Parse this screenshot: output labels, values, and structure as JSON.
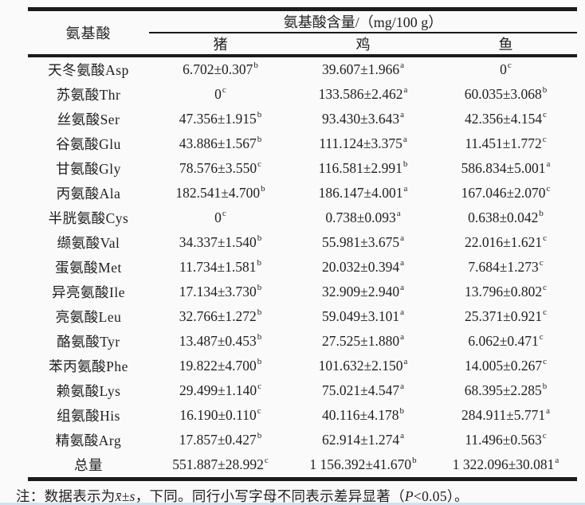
{
  "table": {
    "amino_header": "氨基酸",
    "content_header": "氨基酸含量/（mg/100 g）",
    "species": [
      "猪",
      "鸡",
      "鱼"
    ],
    "rows": [
      {
        "name": "天冬氨酸Asp",
        "cells": [
          {
            "v": "6.702±0.307",
            "s": "b"
          },
          {
            "v": "39.607±1.966",
            "s": "a"
          },
          {
            "v": "0",
            "s": "c"
          }
        ]
      },
      {
        "name": "苏氨酸Thr",
        "cells": [
          {
            "v": "0",
            "s": "c"
          },
          {
            "v": "133.586±2.462",
            "s": "a"
          },
          {
            "v": "60.035±3.068",
            "s": "b"
          }
        ]
      },
      {
        "name": "丝氨酸Ser",
        "cells": [
          {
            "v": "47.356±1.915",
            "s": "b"
          },
          {
            "v": "93.430±3.643",
            "s": "a"
          },
          {
            "v": "42.356±4.154",
            "s": "c"
          }
        ]
      },
      {
        "name": "谷氨酸Glu",
        "cells": [
          {
            "v": "43.886±1.567",
            "s": "b"
          },
          {
            "v": "111.124±3.375",
            "s": "a"
          },
          {
            "v": "11.451±1.772",
            "s": "c"
          }
        ]
      },
      {
        "name": "甘氨酸Gly",
        "cells": [
          {
            "v": "78.576±3.550",
            "s": "c"
          },
          {
            "v": "116.581±2.991",
            "s": "b"
          },
          {
            "v": "586.834±5.001",
            "s": "a"
          }
        ]
      },
      {
        "name": "丙氨酸Ala",
        "cells": [
          {
            "v": "182.541±4.700",
            "s": "b"
          },
          {
            "v": "186.147±4.001",
            "s": "a"
          },
          {
            "v": "167.046±2.070",
            "s": "c"
          }
        ]
      },
      {
        "name": "半胱氨酸Cys",
        "cells": [
          {
            "v": "0",
            "s": "c"
          },
          {
            "v": "0.738±0.093",
            "s": "a"
          },
          {
            "v": "0.638±0.042",
            "s": "b"
          }
        ]
      },
      {
        "name": "缬氨酸Val",
        "cells": [
          {
            "v": "34.337±1.540",
            "s": "b"
          },
          {
            "v": "55.981±3.675",
            "s": "a"
          },
          {
            "v": "22.016±1.621",
            "s": "c"
          }
        ]
      },
      {
        "name": "蛋氨酸Met",
        "cells": [
          {
            "v": "11.734±1.581",
            "s": "b"
          },
          {
            "v": "20.032±0.394",
            "s": "a"
          },
          {
            "v": "7.684±1.273",
            "s": "c"
          }
        ]
      },
      {
        "name": "异亮氨酸Ile",
        "cells": [
          {
            "v": "17.134±3.730",
            "s": "b"
          },
          {
            "v": "32.909±2.940",
            "s": "a"
          },
          {
            "v": "13.796±0.802",
            "s": "c"
          }
        ]
      },
      {
        "name": "亮氨酸Leu",
        "cells": [
          {
            "v": "32.766±1.272",
            "s": "b"
          },
          {
            "v": "59.049±3.101",
            "s": "a"
          },
          {
            "v": "25.371±0.921",
            "s": "c"
          }
        ]
      },
      {
        "name": "酪氨酸Tyr",
        "cells": [
          {
            "v": "13.487±0.453",
            "s": "b"
          },
          {
            "v": "27.525±1.880",
            "s": "a"
          },
          {
            "v": "6.062±0.471",
            "s": "c"
          }
        ]
      },
      {
        "name": "苯丙氨酸Phe",
        "cells": [
          {
            "v": "19.822±4.700",
            "s": "b"
          },
          {
            "v": "101.632±2.150",
            "s": "a"
          },
          {
            "v": "14.005±0.267",
            "s": "c"
          }
        ]
      },
      {
        "name": "赖氨酸Lys",
        "cells": [
          {
            "v": "29.499±1.140",
            "s": "c"
          },
          {
            "v": "75.021±4.547",
            "s": "a"
          },
          {
            "v": "68.395±2.285",
            "s": "b"
          }
        ]
      },
      {
        "name": "组氨酸His",
        "cells": [
          {
            "v": "16.190±0.110",
            "s": "c"
          },
          {
            "v": "40.116±4.178",
            "s": "b"
          },
          {
            "v": "284.911±5.771",
            "s": "a"
          }
        ]
      },
      {
        "name": "精氨酸Arg",
        "cells": [
          {
            "v": "17.857±0.427",
            "s": "b"
          },
          {
            "v": "62.914±1.274",
            "s": "a"
          },
          {
            "v": "11.496±0.563",
            "s": "c"
          }
        ]
      },
      {
        "name": "总量",
        "cells": [
          {
            "v": "551.887±28.992",
            "s": "c"
          },
          {
            "v": "1 156.392±41.670",
            "s": "b"
          },
          {
            "v": "1 322.096±30.081",
            "s": "a"
          }
        ]
      }
    ]
  },
  "note": {
    "label": "注：",
    "part1": "数据表示为",
    "mean_symbol": "x̄",
    "pm_s": "±s",
    "part2": "，下同。同行小写字母不同表示差异显著（",
    "p_symbol": "P",
    "part3": "<0.05）。"
  }
}
